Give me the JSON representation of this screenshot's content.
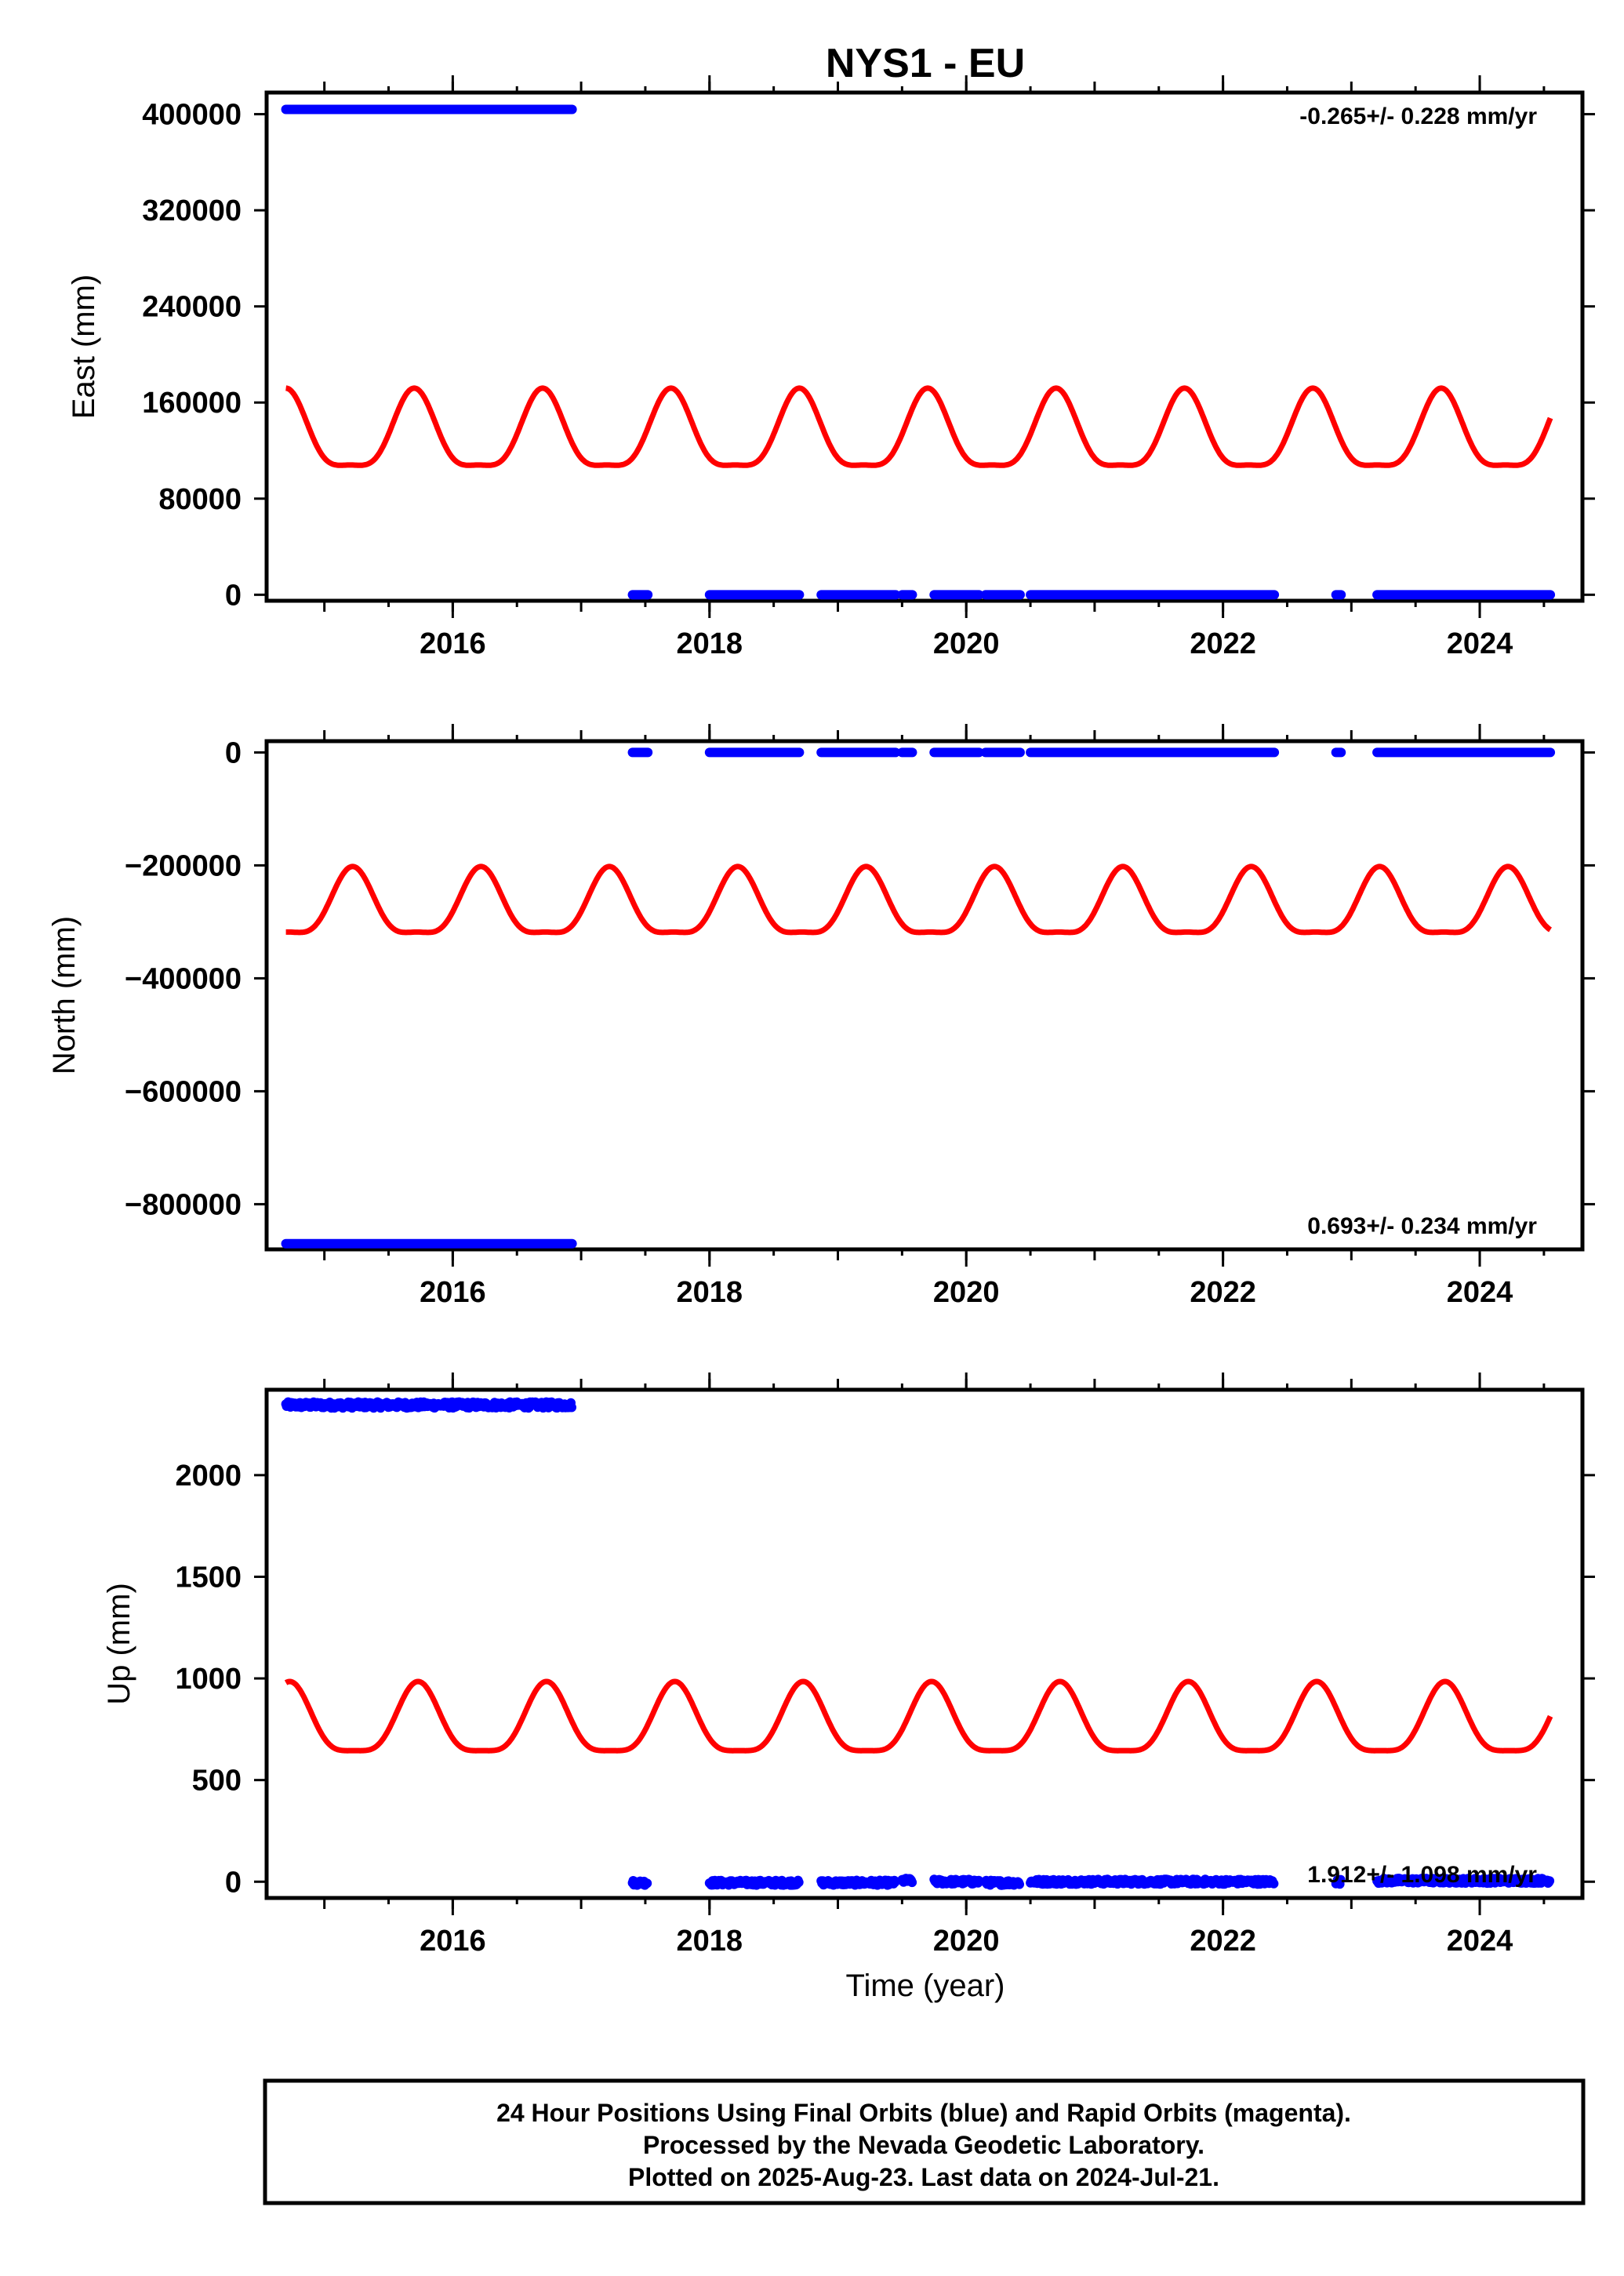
{
  "chart_data": {
    "type": "scatter",
    "title": "NYS1 - EU",
    "xlabel": "Time (year)",
    "xlim": [
      2014.55,
      2024.8
    ],
    "x_ticks": [
      2016,
      2018,
      2020,
      2022,
      2024
    ],
    "colors": {
      "final_orbits": "#0000ff",
      "model": "#ff0000"
    },
    "panels": [
      {
        "ylabel": "East (mm)",
        "ylim": [
          -5000,
          418000
        ],
        "y_ticks": [
          0,
          80000,
          160000,
          240000,
          320000,
          400000
        ],
        "y_tick_labels": [
          "0",
          "80000",
          "160000",
          "240000",
          "320000",
          "400000"
        ],
        "rate_label": "-0.265+/- 0.228 mm/yr",
        "rate_position": "top-right",
        "blue_segments": [
          {
            "x": [
              2014.7,
              2016.93
            ],
            "y": 404000
          },
          {
            "x": [
              2017.4,
              2017.52
            ],
            "y": 0
          },
          {
            "x": [
              2018.0,
              2018.7
            ],
            "y": 0
          },
          {
            "x": [
              2018.87,
              2019.45
            ],
            "y": 0
          },
          {
            "x": [
              2019.5,
              2019.58
            ],
            "y": 0
          },
          {
            "x": [
              2019.75,
              2020.1
            ],
            "y": 0
          },
          {
            "x": [
              2020.15,
              2020.42
            ],
            "y": 0
          },
          {
            "x": [
              2020.5,
              2022.4
            ],
            "y": 0
          },
          {
            "x": [
              2022.88,
              2022.92
            ],
            "y": 0
          },
          {
            "x": [
              2023.2,
              2024.55
            ],
            "y": 0
          }
        ],
        "model_curve": {
          "x_range": [
            2014.7,
            2024.55
          ],
          "mean": 131000,
          "annual_amp": 32000,
          "semiannual_amp": 9000,
          "peak_year": 2015.7
        }
      },
      {
        "ylabel": "North (mm)",
        "ylim": [
          -880000,
          20000
        ],
        "y_ticks": [
          0,
          -200000,
          -400000,
          -600000,
          -800000
        ],
        "y_tick_labels": [
          "0",
          "−200000",
          "−400000",
          "−600000",
          "−800000"
        ],
        "rate_label": "0.693+/- 0.234 mm/yr",
        "rate_position": "bottom-right",
        "blue_segments": [
          {
            "x": [
              2014.7,
              2016.93
            ],
            "y": -870000
          },
          {
            "x": [
              2017.4,
              2017.52
            ],
            "y": 0
          },
          {
            "x": [
              2018.0,
              2018.7
            ],
            "y": 0
          },
          {
            "x": [
              2018.87,
              2019.45
            ],
            "y": 0
          },
          {
            "x": [
              2019.5,
              2019.58
            ],
            "y": 0
          },
          {
            "x": [
              2019.75,
              2020.1
            ],
            "y": 0
          },
          {
            "x": [
              2020.15,
              2020.42
            ],
            "y": 0
          },
          {
            "x": [
              2020.5,
              2022.4
            ],
            "y": 0
          },
          {
            "x": [
              2022.88,
              2022.92
            ],
            "y": 0
          },
          {
            "x": [
              2023.2,
              2024.55
            ],
            "y": 0
          }
        ],
        "model_curve": {
          "x_range": [
            2014.7,
            2024.55
          ],
          "mean": -277000,
          "annual_amp": 58000,
          "semiannual_amp": 17000,
          "peak_year": 2015.22
        }
      },
      {
        "ylabel": "Up (mm)",
        "ylim": [
          -80,
          2420
        ],
        "y_ticks": [
          0,
          500,
          1000,
          1500,
          2000
        ],
        "y_tick_labels": [
          "0",
          "500",
          "1000",
          "1500",
          "2000"
        ],
        "rate_label": "1.912+/- 1.098 mm/yr",
        "rate_position": "bottom-right",
        "blue_segments": [
          {
            "x": [
              2014.7,
              2016.93
            ],
            "y": 2345,
            "scatter": 15
          },
          {
            "x": [
              2017.4,
              2017.52
            ],
            "y": -5,
            "scatter": 12
          },
          {
            "x": [
              2018.0,
              2018.7
            ],
            "y": -5,
            "scatter": 12
          },
          {
            "x": [
              2018.87,
              2019.45
            ],
            "y": -5,
            "scatter": 12
          },
          {
            "x": [
              2019.5,
              2019.58
            ],
            "y": 5,
            "scatter": 12
          },
          {
            "x": [
              2019.75,
              2020.1
            ],
            "y": 0,
            "scatter": 12
          },
          {
            "x": [
              2020.15,
              2020.42
            ],
            "y": -5,
            "scatter": 12
          },
          {
            "x": [
              2020.5,
              2022.4
            ],
            "y": 0,
            "scatter": 12
          },
          {
            "x": [
              2022.88,
              2022.92
            ],
            "y": 0,
            "scatter": 12
          },
          {
            "x": [
              2023.2,
              2024.55
            ],
            "y": 5,
            "scatter": 12
          }
        ],
        "model_curve": {
          "x_range": [
            2014.7,
            2024.55
          ],
          "mean": 770,
          "annual_amp": 170,
          "semiannual_amp": 45,
          "peak_year": 2015.73
        }
      }
    ]
  },
  "footer": {
    "line1": "24 Hour Positions Using Final Orbits (blue) and Rapid Orbits (magenta).",
    "line2": "Processed by the Nevada Geodetic Laboratory.",
    "line3": "Plotted on 2025-Aug-23. Last data on 2024-Jul-21."
  }
}
